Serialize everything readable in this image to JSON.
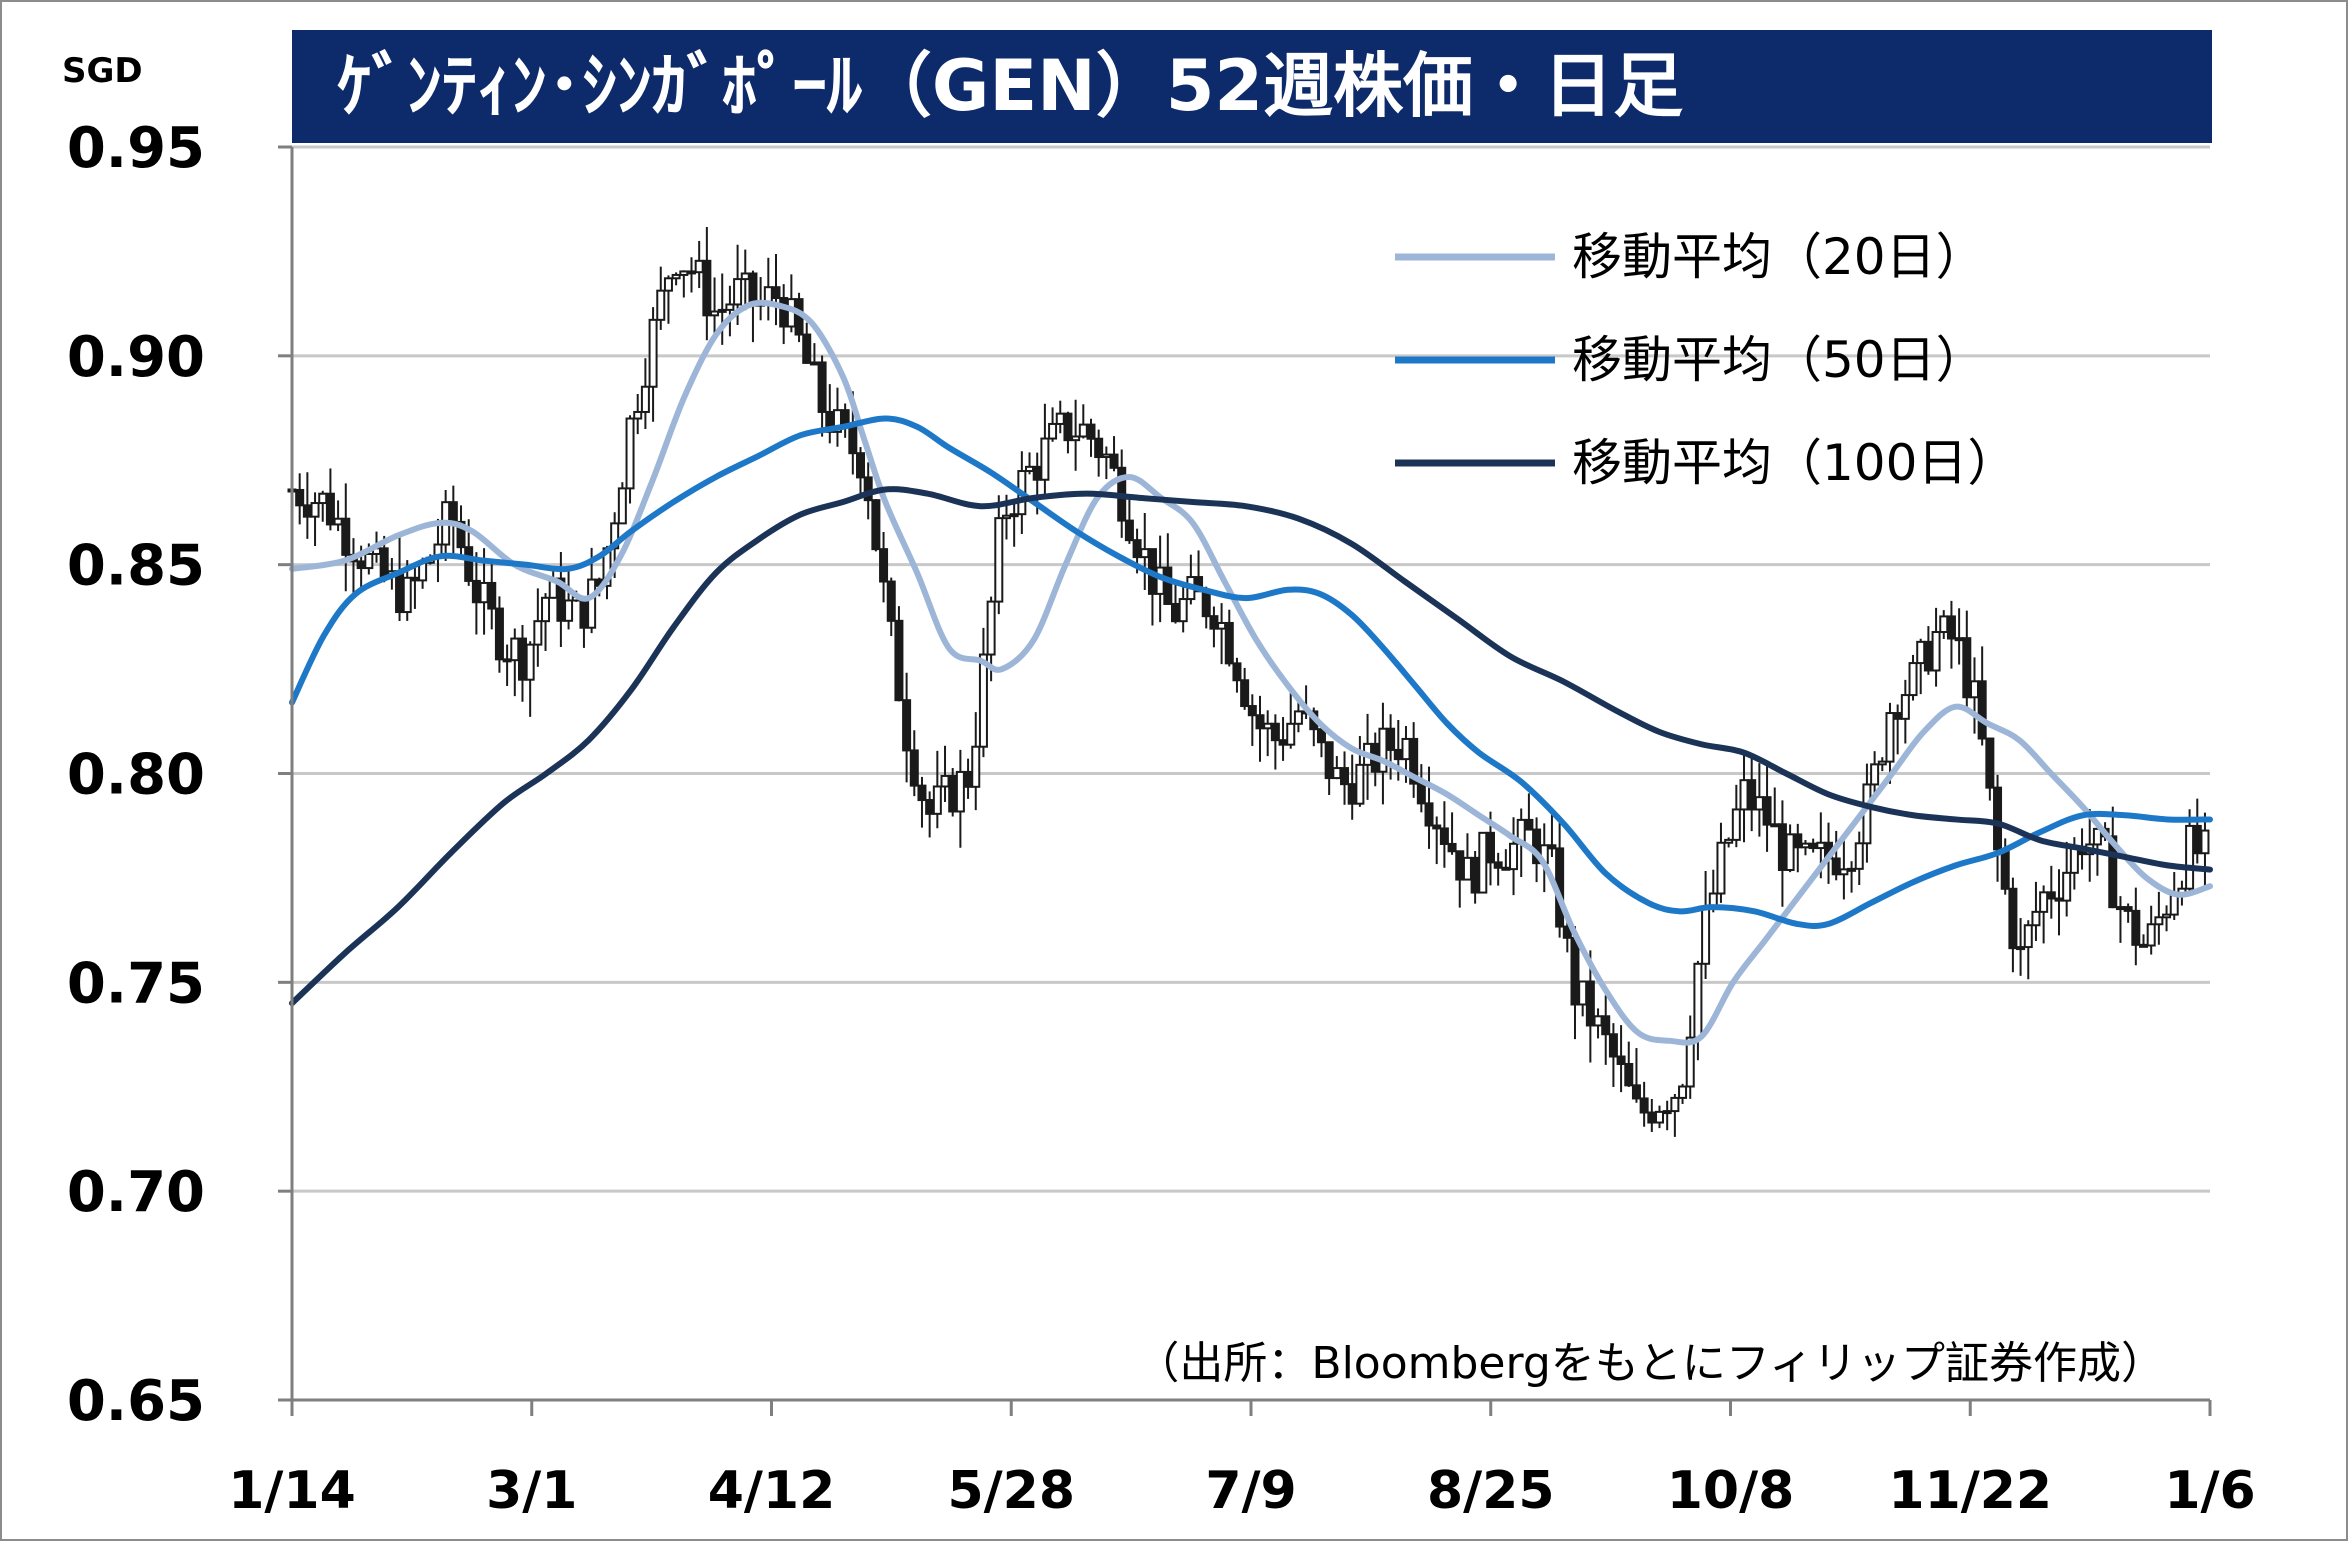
{
  "chart_data": {
    "type": "candlestick",
    "title": "ｹﾞﾝﾃｨﾝ･ｼﾝｶﾞﾎﾟｰﾙ（GEN）52週株価・日足",
    "unit_label": "SGD",
    "source_note": "（出所：Bloombergをもとにフィリップ証券作成）",
    "ylim": [
      0.65,
      0.95
    ],
    "y_ticks": [
      {
        "value": 0.95,
        "label": "0.95"
      },
      {
        "value": 0.9,
        "label": "0.90"
      },
      {
        "value": 0.85,
        "label": "0.85"
      },
      {
        "value": 0.8,
        "label": "0.80"
      },
      {
        "value": 0.75,
        "label": "0.75"
      },
      {
        "value": 0.7,
        "label": "0.70"
      },
      {
        "value": 0.65,
        "label": "0.65"
      }
    ],
    "x_ticks": [
      "1/14",
      "3/1",
      "4/12",
      "5/28",
      "7/9",
      "8/25",
      "10/8",
      "11/22",
      "1/6"
    ],
    "grid": "horizontal",
    "legend_position": "top-right",
    "colors": {
      "title_bg": "#0d2a6b",
      "title_text": "#ffffff",
      "candle": "#1a1a1a",
      "ma20": "#9db6d8",
      "ma50": "#1e78c8",
      "ma100": "#1c3358",
      "grid": "#c8c8c8",
      "axis": "#7f7f7f"
    },
    "price_path": [
      [
        0,
        0.868
      ],
      [
        6,
        0.865
      ],
      [
        10,
        0.858
      ],
      [
        16,
        0.848
      ],
      [
        22,
        0.842
      ],
      [
        30,
        0.862
      ],
      [
        35,
        0.843
      ],
      [
        40,
        0.831
      ],
      [
        44,
        0.828
      ],
      [
        48,
        0.843
      ],
      [
        54,
        0.838
      ],
      [
        58,
        0.845
      ],
      [
        62,
        0.87
      ],
      [
        64,
        0.885
      ],
      [
        68,
        0.905
      ],
      [
        72,
        0.925
      ],
      [
        76,
        0.92
      ],
      [
        80,
        0.91
      ],
      [
        84,
        0.915
      ],
      [
        88,
        0.912
      ],
      [
        92,
        0.915
      ],
      [
        96,
        0.902
      ],
      [
        100,
        0.888
      ],
      [
        104,
        0.88
      ],
      [
        108,
        0.875
      ],
      [
        112,
        0.84
      ],
      [
        116,
        0.81
      ],
      [
        120,
        0.79
      ],
      [
        124,
        0.795
      ],
      [
        128,
        0.8
      ],
      [
        131,
        0.83
      ],
      [
        134,
        0.862
      ],
      [
        138,
        0.87
      ],
      [
        142,
        0.877
      ],
      [
        146,
        0.883
      ],
      [
        150,
        0.882
      ],
      [
        154,
        0.875
      ],
      [
        158,
        0.862
      ],
      [
        162,
        0.848
      ],
      [
        166,
        0.838
      ],
      [
        170,
        0.842
      ],
      [
        174,
        0.84
      ],
      [
        178,
        0.828
      ],
      [
        182,
        0.812
      ],
      [
        186,
        0.808
      ],
      [
        190,
        0.815
      ],
      [
        194,
        0.805
      ],
      [
        198,
        0.797
      ],
      [
        202,
        0.8
      ],
      [
        206,
        0.806
      ],
      [
        210,
        0.808
      ],
      [
        214,
        0.795
      ],
      [
        218,
        0.785
      ],
      [
        222,
        0.775
      ],
      [
        226,
        0.782
      ],
      [
        230,
        0.782
      ],
      [
        234,
        0.785
      ],
      [
        238,
        0.776
      ],
      [
        242,
        0.748
      ],
      [
        246,
        0.74
      ],
      [
        250,
        0.73
      ],
      [
        254,
        0.718
      ],
      [
        258,
        0.722
      ],
      [
        262,
        0.725
      ],
      [
        266,
        0.76
      ],
      [
        270,
        0.78
      ],
      [
        274,
        0.795
      ],
      [
        278,
        0.79
      ],
      [
        282,
        0.78
      ],
      [
        286,
        0.778
      ],
      [
        290,
        0.78
      ],
      [
        294,
        0.782
      ],
      [
        298,
        0.795
      ],
      [
        302,
        0.818
      ],
      [
        306,
        0.822
      ],
      [
        310,
        0.833
      ],
      [
        314,
        0.832
      ],
      [
        318,
        0.815
      ],
      [
        322,
        0.78
      ],
      [
        326,
        0.755
      ],
      [
        330,
        0.77
      ],
      [
        334,
        0.775
      ],
      [
        338,
        0.785
      ],
      [
        342,
        0.78
      ],
      [
        346,
        0.765
      ],
      [
        350,
        0.758
      ],
      [
        354,
        0.77
      ],
      [
        358,
        0.782
      ],
      [
        362,
        0.78
      ]
    ],
    "series": [
      {
        "name": "移動平均（20日）",
        "values": [
          [
            0,
            0.849
          ],
          [
            10,
            0.851
          ],
          [
            20,
            0.857
          ],
          [
            28,
            0.86
          ],
          [
            34,
            0.858
          ],
          [
            42,
            0.85
          ],
          [
            50,
            0.846
          ],
          [
            56,
            0.842
          ],
          [
            62,
            0.852
          ],
          [
            68,
            0.87
          ],
          [
            74,
            0.89
          ],
          [
            80,
            0.905
          ],
          [
            86,
            0.912
          ],
          [
            92,
            0.912
          ],
          [
            98,
            0.908
          ],
          [
            104,
            0.895
          ],
          [
            108,
            0.88
          ],
          [
            112,
            0.865
          ],
          [
            118,
            0.848
          ],
          [
            124,
            0.83
          ],
          [
            130,
            0.827
          ],
          [
            134,
            0.825
          ],
          [
            140,
            0.832
          ],
          [
            146,
            0.85
          ],
          [
            152,
            0.866
          ],
          [
            158,
            0.871
          ],
          [
            164,
            0.866
          ],
          [
            170,
            0.86
          ],
          [
            176,
            0.846
          ],
          [
            182,
            0.832
          ],
          [
            188,
            0.821
          ],
          [
            194,
            0.812
          ],
          [
            200,
            0.806
          ],
          [
            206,
            0.803
          ],
          [
            212,
            0.799
          ],
          [
            218,
            0.795
          ],
          [
            224,
            0.79
          ],
          [
            230,
            0.785
          ],
          [
            236,
            0.779
          ],
          [
            242,
            0.762
          ],
          [
            248,
            0.748
          ],
          [
            254,
            0.738
          ],
          [
            260,
            0.736
          ],
          [
            266,
            0.737
          ],
          [
            272,
            0.75
          ],
          [
            278,
            0.76
          ],
          [
            284,
            0.77
          ],
          [
            290,
            0.78
          ],
          [
            296,
            0.79
          ],
          [
            302,
            0.8
          ],
          [
            308,
            0.81
          ],
          [
            314,
            0.816
          ],
          [
            320,
            0.812
          ],
          [
            326,
            0.808
          ],
          [
            332,
            0.8
          ],
          [
            338,
            0.792
          ],
          [
            344,
            0.783
          ],
          [
            350,
            0.775
          ],
          [
            356,
            0.771
          ],
          [
            362,
            0.773
          ]
        ]
      },
      {
        "name": "移動平均（50日）",
        "values": [
          [
            0,
            0.817
          ],
          [
            6,
            0.833
          ],
          [
            12,
            0.843
          ],
          [
            20,
            0.848
          ],
          [
            28,
            0.852
          ],
          [
            36,
            0.851
          ],
          [
            44,
            0.85
          ],
          [
            52,
            0.849
          ],
          [
            58,
            0.852
          ],
          [
            64,
            0.858
          ],
          [
            72,
            0.865
          ],
          [
            80,
            0.871
          ],
          [
            88,
            0.876
          ],
          [
            96,
            0.881
          ],
          [
            104,
            0.883
          ],
          [
            112,
            0.885
          ],
          [
            118,
            0.883
          ],
          [
            124,
            0.878
          ],
          [
            132,
            0.872
          ],
          [
            140,
            0.865
          ],
          [
            148,
            0.858
          ],
          [
            156,
            0.852
          ],
          [
            164,
            0.847
          ],
          [
            172,
            0.844
          ],
          [
            180,
            0.842
          ],
          [
            188,
            0.844
          ],
          [
            194,
            0.843
          ],
          [
            200,
            0.838
          ],
          [
            206,
            0.83
          ],
          [
            212,
            0.821
          ],
          [
            218,
            0.812
          ],
          [
            224,
            0.805
          ],
          [
            232,
            0.798
          ],
          [
            240,
            0.788
          ],
          [
            248,
            0.776
          ],
          [
            256,
            0.769
          ],
          [
            262,
            0.767
          ],
          [
            268,
            0.768
          ],
          [
            276,
            0.767
          ],
          [
            284,
            0.764
          ],
          [
            290,
            0.764
          ],
          [
            298,
            0.769
          ],
          [
            306,
            0.774
          ],
          [
            314,
            0.778
          ],
          [
            322,
            0.781
          ],
          [
            330,
            0.786
          ],
          [
            338,
            0.79
          ],
          [
            346,
            0.79
          ],
          [
            354,
            0.789
          ],
          [
            362,
            0.789
          ]
        ]
      },
      {
        "name": "移動平均（100日）",
        "values": [
          [
            0,
            0.745
          ],
          [
            10,
            0.757
          ],
          [
            20,
            0.768
          ],
          [
            30,
            0.781
          ],
          [
            40,
            0.793
          ],
          [
            48,
            0.8
          ],
          [
            56,
            0.808
          ],
          [
            64,
            0.82
          ],
          [
            72,
            0.835
          ],
          [
            80,
            0.848
          ],
          [
            88,
            0.856
          ],
          [
            96,
            0.862
          ],
          [
            104,
            0.865
          ],
          [
            112,
            0.868
          ],
          [
            120,
            0.867
          ],
          [
            130,
            0.864
          ],
          [
            140,
            0.866
          ],
          [
            150,
            0.867
          ],
          [
            160,
            0.866
          ],
          [
            170,
            0.865
          ],
          [
            180,
            0.864
          ],
          [
            190,
            0.861
          ],
          [
            200,
            0.855
          ],
          [
            210,
            0.846
          ],
          [
            220,
            0.837
          ],
          [
            230,
            0.828
          ],
          [
            240,
            0.822
          ],
          [
            250,
            0.815
          ],
          [
            258,
            0.81
          ],
          [
            266,
            0.807
          ],
          [
            274,
            0.805
          ],
          [
            282,
            0.8
          ],
          [
            290,
            0.795
          ],
          [
            298,
            0.792
          ],
          [
            306,
            0.79
          ],
          [
            314,
            0.789
          ],
          [
            322,
            0.788
          ],
          [
            330,
            0.784
          ],
          [
            338,
            0.782
          ],
          [
            346,
            0.78
          ],
          [
            354,
            0.778
          ],
          [
            362,
            0.777
          ]
        ]
      }
    ]
  }
}
